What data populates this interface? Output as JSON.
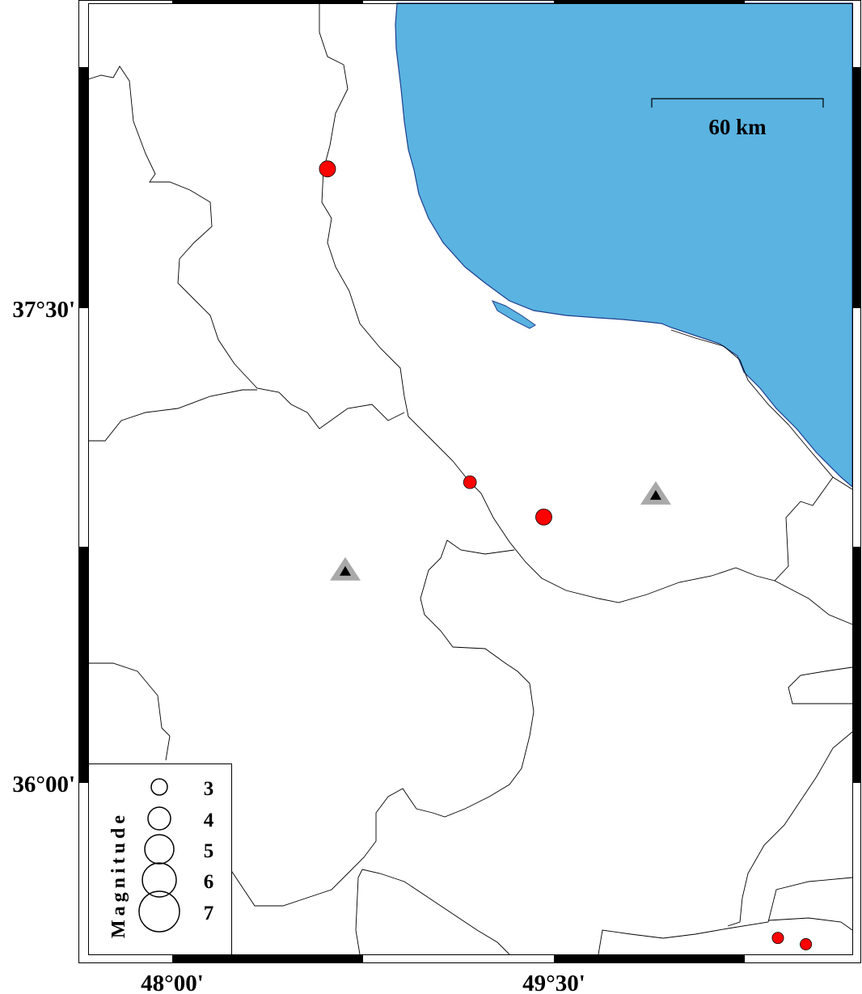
{
  "map": {
    "region": {
      "lon_min": 47.64,
      "lon_max": 50.64,
      "lat_min": 35.47,
      "lat_max": 38.48
    },
    "colors": {
      "sea": "#5ab3e0",
      "land": "#ffffff",
      "event": "#ff0000",
      "station": "#a9a9a9",
      "station_inner": "#000000",
      "border": "#000000"
    },
    "axis": {
      "lat_labels": [
        {
          "value": 37.5,
          "text": "37°30'"
        },
        {
          "value": 36.0,
          "text": "36°00'"
        }
      ],
      "lon_labels": [
        {
          "value": 48.0,
          "text": "48°00'"
        },
        {
          "value": 49.5,
          "text": "49°30'"
        }
      ]
    },
    "scale_bar": {
      "label": "60 km"
    },
    "events": [
      {
        "lon": 48.61,
        "lat": 37.94,
        "mag": 3.0
      },
      {
        "lon": 49.17,
        "lat": 36.95,
        "mag": 2.8
      },
      {
        "lon": 49.46,
        "lat": 36.84,
        "mag": 3.0
      },
      {
        "lon": 50.38,
        "lat": 35.51,
        "mag": 2.5
      },
      {
        "lon": 50.49,
        "lat": 35.49,
        "mag": 2.5
      }
    ],
    "stations": [
      {
        "lon": 49.9,
        "lat": 36.91,
        "icon": "triangle-icon"
      },
      {
        "lon": 48.68,
        "lat": 36.67,
        "icon": "triangle-icon"
      }
    ],
    "legend": {
      "title": "Magnitude",
      "items": [
        "3",
        "4",
        "5",
        "6",
        "7"
      ]
    }
  }
}
